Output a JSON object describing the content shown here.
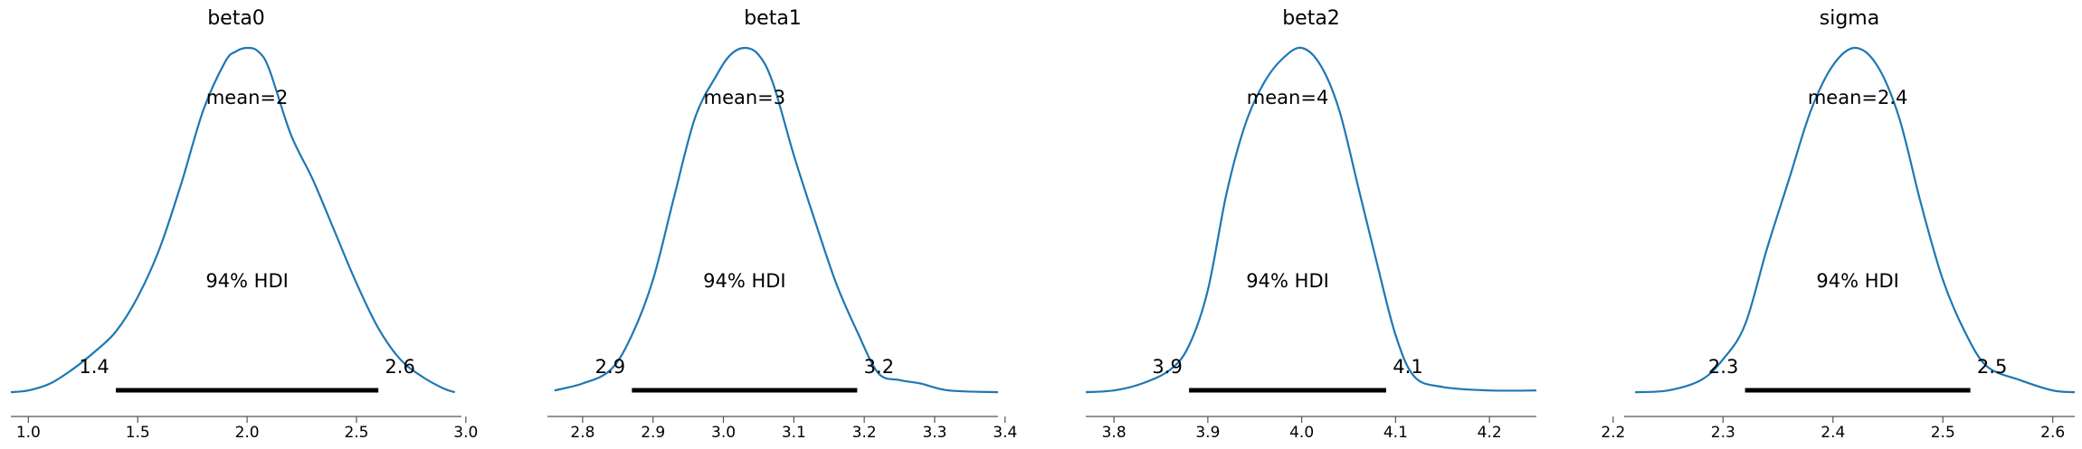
{
  "chart_data": [
    {
      "type": "line",
      "title": "beta0",
      "mean_label": "mean=2",
      "hdi_label": "94% HDI",
      "hdi": [
        1.4,
        2.6
      ],
      "hdi_low_label": "1.4",
      "hdi_high_label": "2.6",
      "xlim": [
        0.92,
        2.98
      ],
      "xticks": [
        1.0,
        1.5,
        2.0,
        2.5,
        3.0
      ],
      "xtick_labels": [
        "1.0",
        "1.5",
        "2.0",
        "2.5",
        "3.0"
      ],
      "kde_x": [
        0.92,
        1.0,
        1.1,
        1.2,
        1.3,
        1.4,
        1.5,
        1.6,
        1.7,
        1.8,
        1.9,
        1.95,
        2.0,
        2.05,
        2.1,
        2.2,
        2.3,
        2.4,
        2.5,
        2.6,
        2.7,
        2.8,
        2.9,
        2.95
      ],
      "kde_y": [
        0.005,
        0.01,
        0.03,
        0.07,
        0.12,
        0.18,
        0.28,
        0.42,
        0.61,
        0.82,
        0.96,
        0.99,
        1.0,
        0.99,
        0.94,
        0.75,
        0.62,
        0.47,
        0.32,
        0.19,
        0.1,
        0.05,
        0.015,
        0.005
      ]
    },
    {
      "type": "line",
      "title": "beta1",
      "mean_label": "mean=3",
      "hdi_label": "94% HDI",
      "hdi": [
        2.87,
        3.19
      ],
      "hdi_low_label": "2.9",
      "hdi_high_label": "3.2",
      "xlim": [
        2.75,
        3.39
      ],
      "xticks": [
        2.8,
        2.9,
        3.0,
        3.1,
        3.2,
        3.3,
        3.4
      ],
      "xtick_labels": [
        "2.8",
        "2.9",
        "3.0",
        "3.1",
        "3.2",
        "3.3",
        "3.4"
      ],
      "kde_x": [
        2.76,
        2.8,
        2.84,
        2.87,
        2.9,
        2.93,
        2.96,
        2.99,
        3.01,
        3.03,
        3.05,
        3.07,
        3.1,
        3.13,
        3.16,
        3.19,
        3.22,
        3.25,
        3.28,
        3.32,
        3.39
      ],
      "kde_y": [
        0.01,
        0.03,
        0.07,
        0.17,
        0.33,
        0.57,
        0.8,
        0.92,
        0.98,
        1.0,
        0.98,
        0.9,
        0.69,
        0.5,
        0.32,
        0.18,
        0.06,
        0.04,
        0.03,
        0.01,
        0.005
      ]
    },
    {
      "type": "line",
      "title": "beta2",
      "mean_label": "mean=4",
      "hdi_label": "94% HDI",
      "hdi": [
        3.88,
        4.09
      ],
      "hdi_low_label": "3.9",
      "hdi_high_label": "4.1",
      "xlim": [
        3.77,
        4.25
      ],
      "xticks": [
        3.8,
        3.9,
        4.0,
        4.1,
        4.2
      ],
      "xtick_labels": [
        "3.8",
        "3.9",
        "4.0",
        "4.1",
        "4.2"
      ],
      "kde_x": [
        3.77,
        3.8,
        3.83,
        3.86,
        3.88,
        3.9,
        3.92,
        3.94,
        3.96,
        3.98,
        4.0,
        4.02,
        4.04,
        4.06,
        4.08,
        4.1,
        4.12,
        4.15,
        4.2,
        4.25
      ],
      "kde_y": [
        0.005,
        0.01,
        0.03,
        0.07,
        0.14,
        0.3,
        0.58,
        0.78,
        0.9,
        0.97,
        1.0,
        0.95,
        0.82,
        0.6,
        0.38,
        0.17,
        0.05,
        0.02,
        0.01,
        0.01
      ]
    },
    {
      "type": "line",
      "title": "sigma",
      "mean_label": "mean=2.4",
      "hdi_label": "94% HDI",
      "hdi": [
        2.32,
        2.525
      ],
      "hdi_low_label": "2.3",
      "hdi_high_label": "2.5",
      "xlim": [
        2.21,
        2.62
      ],
      "xticks": [
        2.2,
        2.3,
        2.4,
        2.5,
        2.6
      ],
      "xtick_labels": [
        "2.2",
        "2.3",
        "2.4",
        "2.5",
        "2.6"
      ],
      "kde_x": [
        2.22,
        2.25,
        2.28,
        2.3,
        2.32,
        2.34,
        2.36,
        2.38,
        2.4,
        2.42,
        2.44,
        2.46,
        2.48,
        2.5,
        2.52,
        2.54,
        2.57,
        2.6,
        2.62
      ],
      "kde_y": [
        0.005,
        0.01,
        0.04,
        0.1,
        0.2,
        0.42,
        0.62,
        0.82,
        0.95,
        1.0,
        0.95,
        0.8,
        0.55,
        0.33,
        0.18,
        0.08,
        0.04,
        0.01,
        0.005
      ]
    }
  ]
}
